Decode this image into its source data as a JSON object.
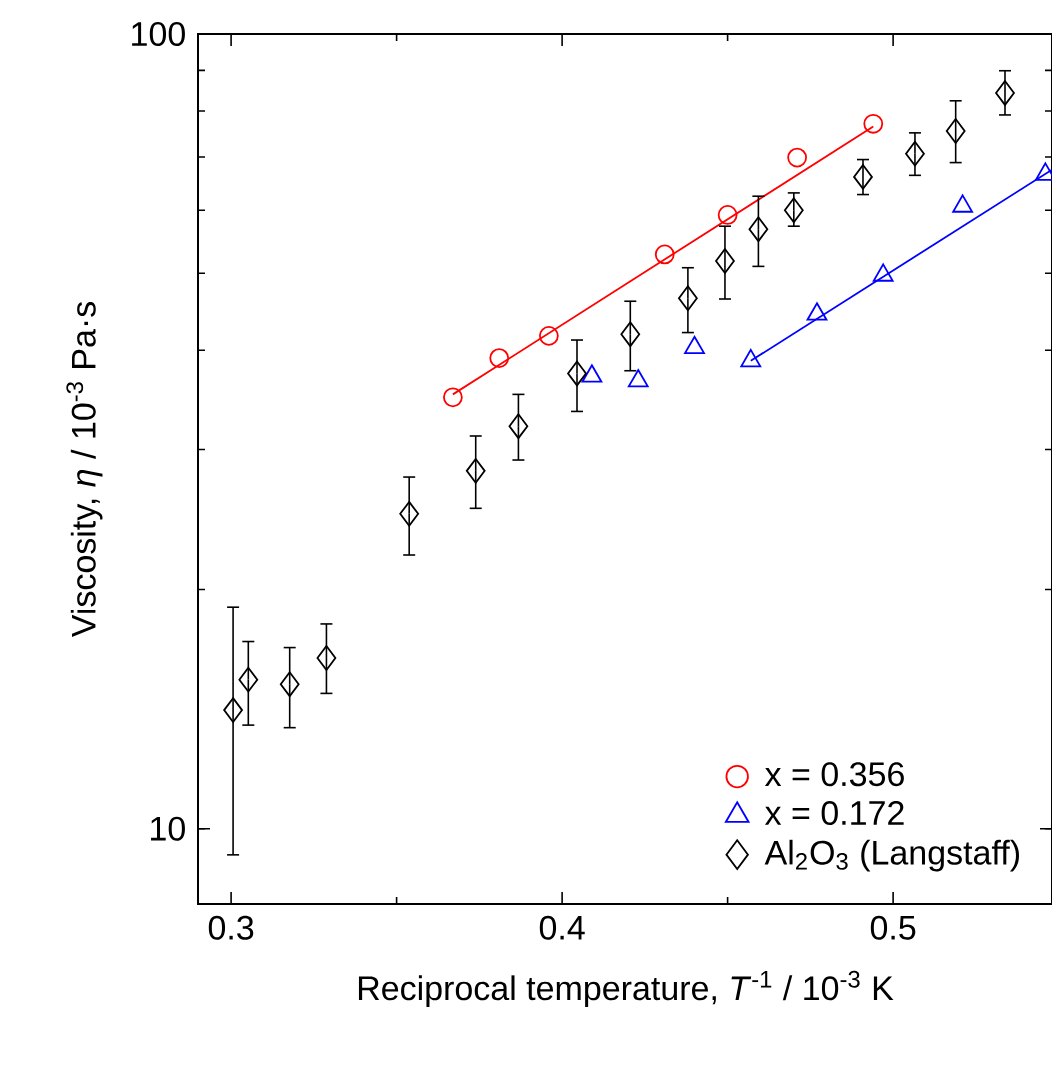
{
  "chart_data": {
    "type": "scatter",
    "xlabel": "Reciprocal temperature, *T*$^{-1}$ / 10$^{-3}$ K",
    "ylabel": "Viscosity, *η* / 10$^{-3}$ Pa·s",
    "log": "y",
    "xlim": [
      0.29,
      0.548
    ],
    "ylim": [
      8.04,
      100
    ],
    "xticks": [
      0.3,
      0.4,
      0.5
    ],
    "yticks": [
      10,
      100
    ],
    "grid": false,
    "legend": "bottom right",
    "series": [
      {
        "name": "x = 0.356",
        "color": "#ff0000",
        "marker": "circle",
        "x": [
          0.367,
          0.381,
          0.396,
          0.431,
          0.45,
          0.471,
          0.494
        ],
        "values": [
          34.9,
          39.1,
          41.7,
          52.8,
          59.2,
          69.9,
          77.1
        ]
      },
      {
        "color": "#ff0000",
        "type": "line",
        "x": [
          0.367,
          0.494
        ],
        "values": [
          35.2,
          76.5
        ]
      },
      {
        "name": "x = 0.172",
        "color": "#0000ff",
        "marker": "triangle",
        "x": [
          0.409,
          0.423,
          0.44,
          0.457,
          0.477,
          0.497,
          0.521,
          0.546
        ],
        "values": [
          37.1,
          36.6,
          40.3,
          38.8,
          44.4,
          49.7,
          60.7,
          66.6
        ]
      },
      {
        "color": "#0000ff",
        "type": "line",
        "x": [
          0.457,
          0.548
        ],
        "values": [
          38.8,
          67.5
        ]
      },
      {
        "name": "Al$_{2}$O$_{3}$ (Langstaff)",
        "color": "#000000",
        "marker": "diamond",
        "x": [
          0.3006,
          0.3052,
          0.3177,
          0.3288,
          0.3538,
          0.3739,
          0.3868,
          0.4045,
          0.4206,
          0.438,
          0.4492,
          0.4593,
          0.47,
          0.4909,
          0.5066,
          0.5189,
          0.5338
        ],
        "values": [
          14.1,
          15.4,
          15.2,
          16.4,
          24.9,
          28.2,
          32.1,
          37.4,
          41.9,
          46.5,
          51.8,
          56.8,
          60.0,
          66.1,
          70.7,
          75.5,
          84.3
        ],
        "errors": [
          [
            9.27,
            19.0
          ],
          [
            13.5,
            17.2
          ],
          [
            13.4,
            16.9
          ],
          [
            14.8,
            18.1
          ],
          [
            22.1,
            27.7
          ],
          [
            25.3,
            31.2
          ],
          [
            29.1,
            35.2
          ],
          [
            33.5,
            41.2
          ],
          [
            37.7,
            46.1
          ],
          [
            42.1,
            50.8
          ],
          [
            46.4,
            57.3
          ],
          [
            51.0,
            62.5
          ],
          [
            57.3,
            63.1
          ],
          [
            62.8,
            69.5
          ],
          [
            66.4,
            75.1
          ],
          [
            68.9,
            82.4
          ],
          [
            79.1,
            89.9
          ]
        ]
      }
    ]
  }
}
